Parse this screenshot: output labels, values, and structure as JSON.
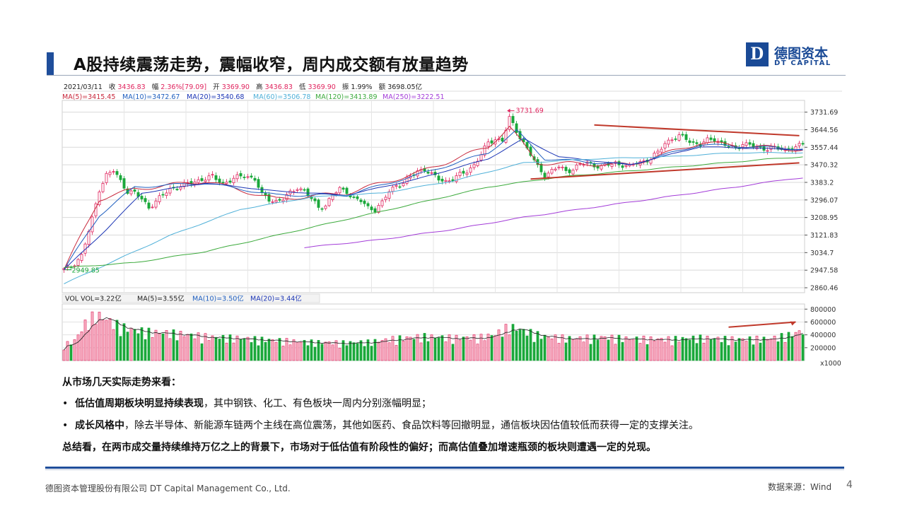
{
  "slide": {
    "title": "A股持续震荡走势，震幅收窄，周内成交额有放量趋势",
    "logo": {
      "letter": "D",
      "cn": "德图资本",
      "en": "DT CAPITAL"
    },
    "page_number": "4",
    "footer_left": "德图资本管理股份有限公司  DT Capital Management  Co., Ltd.",
    "footer_right": "数据来源：Wind",
    "colors": {
      "brand": "#1f4e9b",
      "up": "#e0245e",
      "down": "#1aa83b"
    }
  },
  "quote_bar": {
    "date": "2021/03/11",
    "close_label": "收",
    "close": "3436.83",
    "change_label": "幅",
    "change": "2.36%[79.09]",
    "open_label": "开",
    "open": "3369.90",
    "high_label": "高",
    "high": "3436.83",
    "low_label": "低",
    "low": "3369.90",
    "amplitude_label": "振",
    "amplitude": "1.99%",
    "amount_label": "额",
    "amount": "3698.05亿"
  },
  "ma_legend": [
    {
      "text": "MA(5)=3415.45",
      "color": "#c8283c"
    },
    {
      "text": "MA(10)=3472.67",
      "color": "#1f5fbf"
    },
    {
      "text": "MA(20)=3540.68",
      "color": "#1b35b5"
    },
    {
      "text": "MA(60)=3506.78",
      "color": "#4fb0d8"
    },
    {
      "text": "MA(120)=3413.89",
      "color": "#3caa3c"
    },
    {
      "text": "MA(250)=3222.51",
      "color": "#a33cd8"
    }
  ],
  "vol_legend": [
    {
      "text": "VOL  VOL=3.22亿",
      "color": "#222222"
    },
    {
      "text": "MA(5)=3.55亿",
      "color": "#222222"
    },
    {
      "text": "MA(10)=3.50亿",
      "color": "#1f5fbf"
    },
    {
      "text": "MA(20)=3.44亿",
      "color": "#1b35b5"
    }
  ],
  "chart_data": [
    {
      "type": "candlestick",
      "title": "",
      "y_ticks": [
        3731.69,
        3644.56,
        3557.44,
        3470.32,
        3383.2,
        3296.07,
        3208.95,
        3121.83,
        3034.7,
        2947.58,
        2860.46
      ],
      "ylim": [
        2836,
        3790
      ],
      "grid": true,
      "n_sessions": 210,
      "annotations": [
        {
          "text": "3731.69",
          "type": "high",
          "value": 3731.69,
          "index": 125
        },
        {
          "text": "2949.85",
          "type": "low",
          "value": 2949.85,
          "index": 0
        }
      ],
      "trend_lines": [
        {
          "name": "upper",
          "from": {
            "index": 150,
            "value": 3668
          },
          "to": {
            "index": 208,
            "value": 3615
          }
        },
        {
          "name": "lower",
          "from": {
            "index": 132,
            "value": 3400
          },
          "to": {
            "index": 208,
            "value": 3480
          }
        }
      ],
      "close_anchors": [
        [
          0,
          2950
        ],
        [
          2,
          2965
        ],
        [
          5,
          3020
        ],
        [
          8,
          3200
        ],
        [
          10,
          3350
        ],
        [
          12,
          3420
        ],
        [
          14,
          3440
        ],
        [
          16,
          3390
        ],
        [
          18,
          3340
        ],
        [
          20,
          3330
        ],
        [
          22,
          3300
        ],
        [
          24,
          3260
        ],
        [
          26,
          3290
        ],
        [
          28,
          3320
        ],
        [
          30,
          3350
        ],
        [
          33,
          3365
        ],
        [
          36,
          3380
        ],
        [
          39,
          3400
        ],
        [
          42,
          3410
        ],
        [
          45,
          3380
        ],
        [
          48,
          3400
        ],
        [
          51,
          3420
        ],
        [
          54,
          3400
        ],
        [
          56,
          3320
        ],
        [
          58,
          3300
        ],
        [
          60,
          3290
        ],
        [
          62,
          3300
        ],
        [
          64,
          3330
        ],
        [
          66,
          3360
        ],
        [
          68,
          3340
        ],
        [
          70,
          3300
        ],
        [
          72,
          3260
        ],
        [
          74,
          3270
        ],
        [
          76,
          3320
        ],
        [
          78,
          3350
        ],
        [
          80,
          3340
        ],
        [
          82,
          3300
        ],
        [
          84,
          3290
        ],
        [
          86,
          3260
        ],
        [
          88,
          3250
        ],
        [
          90,
          3280
        ],
        [
          92,
          3340
        ],
        [
          94,
          3370
        ],
        [
          96,
          3380
        ],
        [
          98,
          3410
        ],
        [
          100,
          3440
        ],
        [
          102,
          3450
        ],
        [
          104,
          3420
        ],
        [
          106,
          3400
        ],
        [
          108,
          3390
        ],
        [
          110,
          3400
        ],
        [
          112,
          3420
        ],
        [
          114,
          3440
        ],
        [
          116,
          3470
        ],
        [
          118,
          3520
        ],
        [
          120,
          3580
        ],
        [
          122,
          3600
        ],
        [
          124,
          3590
        ],
        [
          126,
          3700
        ],
        [
          128,
          3640
        ],
        [
          130,
          3580
        ],
        [
          132,
          3520
        ],
        [
          134,
          3460
        ],
        [
          136,
          3420
        ],
        [
          138,
          3440
        ],
        [
          140,
          3460
        ],
        [
          142,
          3440
        ],
        [
          144,
          3450
        ],
        [
          146,
          3470
        ],
        [
          148,
          3480
        ],
        [
          150,
          3470
        ],
        [
          152,
          3460
        ],
        [
          154,
          3470
        ],
        [
          156,
          3480
        ],
        [
          158,
          3470
        ],
        [
          160,
          3460
        ],
        [
          162,
          3480
        ],
        [
          164,
          3490
        ],
        [
          166,
          3500
        ],
        [
          168,
          3530
        ],
        [
          170,
          3580
        ],
        [
          172,
          3600
        ],
        [
          174,
          3610
        ],
        [
          176,
          3600
        ],
        [
          178,
          3580
        ],
        [
          180,
          3570
        ],
        [
          182,
          3590
        ],
        [
          184,
          3600
        ],
        [
          186,
          3580
        ],
        [
          188,
          3560
        ],
        [
          190,
          3550
        ],
        [
          192,
          3580
        ],
        [
          194,
          3570
        ],
        [
          196,
          3550
        ],
        [
          198,
          3550
        ],
        [
          200,
          3560
        ],
        [
          202,
          3550
        ],
        [
          204,
          3540
        ],
        [
          206,
          3560
        ],
        [
          209,
          3570
        ]
      ],
      "ma_anchors": {
        "MA(5)": [
          [
            0,
            2950
          ],
          [
            10,
            3300
          ],
          [
            20,
            3350
          ],
          [
            40,
            3390
          ],
          [
            60,
            3300
          ],
          [
            80,
            3330
          ],
          [
            100,
            3430
          ],
          [
            120,
            3560
          ],
          [
            126,
            3660
          ],
          [
            134,
            3480
          ],
          [
            160,
            3470
          ],
          [
            180,
            3580
          ],
          [
            209,
            3545
          ]
        ],
        "MA(10)": [
          [
            0,
            2950
          ],
          [
            10,
            3220
          ],
          [
            20,
            3360
          ],
          [
            40,
            3380
          ],
          [
            60,
            3320
          ],
          [
            80,
            3320
          ],
          [
            100,
            3420
          ],
          [
            120,
            3530
          ],
          [
            128,
            3640
          ],
          [
            136,
            3500
          ],
          [
            160,
            3470
          ],
          [
            180,
            3570
          ],
          [
            209,
            3550
          ]
        ],
        "MA(20)": [
          [
            0,
            2950
          ],
          [
            12,
            3150
          ],
          [
            22,
            3330
          ],
          [
            40,
            3380
          ],
          [
            60,
            3340
          ],
          [
            80,
            3320
          ],
          [
            100,
            3400
          ],
          [
            120,
            3500
          ],
          [
            130,
            3600
          ],
          [
            140,
            3510
          ],
          [
            160,
            3470
          ],
          [
            180,
            3560
          ],
          [
            209,
            3545
          ]
        ],
        "MA(60)": [
          [
            0,
            2880
          ],
          [
            30,
            3120
          ],
          [
            50,
            3250
          ],
          [
            70,
            3310
          ],
          [
            90,
            3330
          ],
          [
            110,
            3390
          ],
          [
            130,
            3480
          ],
          [
            150,
            3500
          ],
          [
            170,
            3510
          ],
          [
            190,
            3530
          ],
          [
            209,
            3530
          ]
        ],
        "MA(120)": [
          [
            0,
            2960
          ],
          [
            20,
            2985
          ],
          [
            40,
            3040
          ],
          [
            60,
            3120
          ],
          [
            80,
            3200
          ],
          [
            100,
            3280
          ],
          [
            120,
            3360
          ],
          [
            140,
            3410
          ],
          [
            160,
            3440
          ],
          [
            180,
            3470
          ],
          [
            200,
            3500
          ],
          [
            209,
            3510
          ]
        ],
        "MA(250)": [
          [
            68,
            3060
          ],
          [
            90,
            3100
          ],
          [
            110,
            3150
          ],
          [
            130,
            3210
          ],
          [
            150,
            3260
          ],
          [
            170,
            3310
          ],
          [
            190,
            3360
          ],
          [
            205,
            3400
          ],
          [
            209,
            3405
          ]
        ]
      }
    },
    {
      "type": "bar",
      "title": "",
      "ylabel": "x1000",
      "y_ticks": [
        200000,
        400000,
        600000,
        800000
      ],
      "ylim": [
        0,
        880000
      ],
      "annotation": "increasing volume trend (arrow)",
      "volume_anchors": [
        [
          0,
          220000
        ],
        [
          3,
          280000
        ],
        [
          6,
          520000
        ],
        [
          9,
          650000
        ],
        [
          12,
          580000
        ],
        [
          16,
          480000
        ],
        [
          20,
          430000
        ],
        [
          25,
          400000
        ],
        [
          30,
          390000
        ],
        [
          36,
          360000
        ],
        [
          42,
          330000
        ],
        [
          48,
          320000
        ],
        [
          55,
          300000
        ],
        [
          62,
          280000
        ],
        [
          70,
          260000
        ],
        [
          78,
          250000
        ],
        [
          86,
          260000
        ],
        [
          94,
          310000
        ],
        [
          102,
          340000
        ],
        [
          110,
          320000
        ],
        [
          118,
          330000
        ],
        [
          122,
          370000
        ],
        [
          126,
          480000
        ],
        [
          130,
          420000
        ],
        [
          136,
          340000
        ],
        [
          144,
          310000
        ],
        [
          152,
          330000
        ],
        [
          160,
          310000
        ],
        [
          170,
          300000
        ],
        [
          180,
          320000
        ],
        [
          190,
          300000
        ],
        [
          200,
          310000
        ],
        [
          205,
          360000
        ],
        [
          209,
          420000
        ]
      ]
    }
  ],
  "analysis": {
    "heading": "从市场几天实际走势来看：",
    "bullet_mark": "•",
    "bullet1_bold": "低估值周期板块明显持续表现",
    "bullet1_rest": "，其中钢铁、化工、有色板块一周内分别涨幅明显；",
    "bullet2_bold": "成长风格中",
    "bullet2_rest": "，除去半导体、新能源车链两个主线在高位震荡，其他如医药、食品饮料等回撤明显，通信板块因估值较低而获得一定的支撑关注。",
    "summary": "总结看，在两市成交量持续维持万亿之上的背景下，市场对于低估值有阶段性的偏好；而高估值叠加增速瓶颈的板块则遭遇一定的兑现。"
  }
}
